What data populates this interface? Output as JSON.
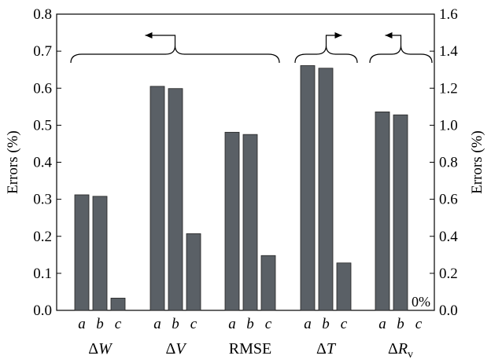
{
  "chart_data": {
    "type": "bar",
    "y_left": {
      "label": "Errors (%)",
      "ylim": [
        0,
        0.8
      ],
      "ticks": [
        "0.0",
        "0.1",
        "0.2",
        "0.3",
        "0.4",
        "0.5",
        "0.6",
        "0.7",
        "0.8"
      ]
    },
    "y_right": {
      "label": "Errors (%)",
      "ylim": [
        0,
        1.6
      ],
      "ticks": [
        "0.0",
        "0.2",
        "0.4",
        "0.6",
        "0.8",
        "1.0",
        "1.2",
        "1.4",
        "1.6"
      ]
    },
    "sub_categories": [
      "a",
      "b",
      "c"
    ],
    "groups": [
      {
        "delta": "Δ",
        "name": "W",
        "subscript": "",
        "axis": "left",
        "values": [
          0.312,
          0.308,
          0.033
        ]
      },
      {
        "delta": "Δ",
        "name": "V",
        "subscript": "",
        "axis": "left",
        "values": [
          0.605,
          0.599,
          0.207
        ]
      },
      {
        "delta": "",
        "name": "RMSE",
        "subscript": "",
        "axis": "left",
        "values": [
          0.481,
          0.475,
          0.148
        ]
      },
      {
        "delta": "Δ",
        "name": "T",
        "subscript": "",
        "axis": "right",
        "values": [
          1.322,
          1.308,
          0.256
        ]
      },
      {
        "delta": "Δ",
        "name": "R",
        "subscript": "v",
        "axis": "right",
        "values": [
          1.072,
          1.056,
          0.0
        ]
      }
    ],
    "annotations": [
      {
        "text": "0%"
      }
    ],
    "bar_color": "#5a6066",
    "grid": false,
    "legend": "none"
  }
}
